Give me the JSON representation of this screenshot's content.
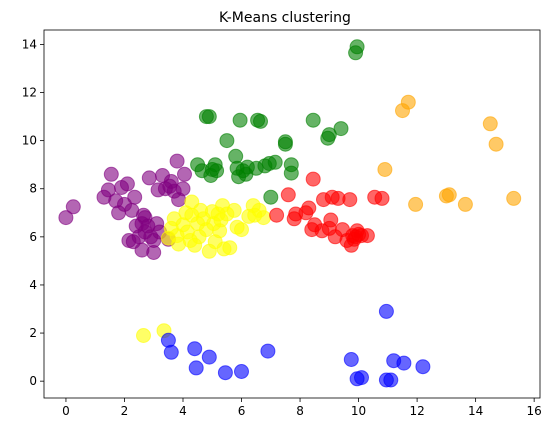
{
  "chart_data": {
    "type": "scatter",
    "title": "K-Means clustering",
    "xlabel": "",
    "ylabel": "",
    "xlim": [
      -0.75,
      16.2
    ],
    "ylim": [
      -0.7,
      14.6
    ],
    "xticks": [
      0,
      2,
      4,
      6,
      8,
      10,
      12,
      14,
      16
    ],
    "yticks": [
      0,
      2,
      4,
      6,
      8,
      10,
      12,
      14
    ],
    "grid": false,
    "marker_alpha": 0.6,
    "series": [
      {
        "color": "#800080",
        "points": [
          [
            0,
            6.8
          ],
          [
            0.25,
            7.25
          ],
          [
            1.3,
            7.65
          ],
          [
            1.45,
            7.95
          ],
          [
            1.55,
            8.6
          ],
          [
            1.7,
            7.5
          ],
          [
            1.8,
            7.0
          ],
          [
            1.9,
            8.05
          ],
          [
            2.0,
            7.35
          ],
          [
            2.1,
            8.2
          ],
          [
            2.15,
            5.85
          ],
          [
            2.25,
            7.1
          ],
          [
            2.3,
            5.8
          ],
          [
            2.35,
            7.65
          ],
          [
            2.4,
            6.45
          ],
          [
            2.5,
            6.0
          ],
          [
            2.6,
            6.55
          ],
          [
            2.6,
            5.45
          ],
          [
            2.65,
            6.9
          ],
          [
            2.7,
            6.2
          ],
          [
            2.8,
            6.45
          ],
          [
            2.85,
            8.45
          ],
          [
            2.9,
            6.0
          ],
          [
            3.0,
            5.85
          ],
          [
            3.0,
            5.35
          ],
          [
            3.1,
            6.55
          ],
          [
            3.15,
            7.95
          ],
          [
            3.2,
            6.2
          ],
          [
            3.3,
            8.55
          ],
          [
            3.5,
            5.9
          ],
          [
            3.55,
            8.1
          ],
          [
            3.6,
            8.3
          ],
          [
            3.7,
            7.9
          ],
          [
            3.8,
            9.15
          ],
          [
            3.85,
            7.55
          ],
          [
            4.0,
            8.0
          ],
          [
            4.05,
            8.6
          ],
          [
            2.7,
            6.8
          ],
          [
            3.4,
            8.0
          ]
        ]
      },
      {
        "color": "#ffff00",
        "points": [
          [
            2.65,
            1.9
          ],
          [
            3.35,
            2.1
          ],
          [
            3.5,
            5.95
          ],
          [
            3.6,
            6.35
          ],
          [
            3.7,
            6.75
          ],
          [
            3.8,
            6.05
          ],
          [
            3.85,
            5.7
          ],
          [
            4.0,
            6.5
          ],
          [
            4.1,
            7.0
          ],
          [
            4.15,
            6.2
          ],
          [
            4.25,
            5.85
          ],
          [
            4.3,
            7.45
          ],
          [
            4.4,
            5.65
          ],
          [
            4.5,
            6.55
          ],
          [
            4.55,
            6.0
          ],
          [
            4.6,
            7.1
          ],
          [
            4.7,
            6.75
          ],
          [
            4.8,
            6.3
          ],
          [
            4.9,
            5.4
          ],
          [
            5.0,
            7.05
          ],
          [
            5.05,
            6.55
          ],
          [
            5.1,
            5.8
          ],
          [
            5.2,
            6.95
          ],
          [
            5.25,
            6.25
          ],
          [
            5.35,
            7.3
          ],
          [
            5.4,
            5.5
          ],
          [
            5.5,
            6.95
          ],
          [
            5.6,
            5.55
          ],
          [
            5.75,
            7.1
          ],
          [
            5.85,
            6.4
          ],
          [
            6.0,
            6.3
          ],
          [
            6.25,
            6.85
          ],
          [
            6.4,
            7.3
          ],
          [
            6.45,
            6.9
          ],
          [
            6.6,
            7.1
          ],
          [
            6.75,
            6.8
          ],
          [
            4.3,
            6.9
          ],
          [
            5.3,
            6.7
          ]
        ]
      },
      {
        "color": "#008000",
        "points": [
          [
            4.5,
            9.0
          ],
          [
            4.65,
            8.75
          ],
          [
            4.8,
            11.0
          ],
          [
            4.9,
            11.0
          ],
          [
            4.95,
            8.55
          ],
          [
            5.0,
            8.8
          ],
          [
            5.1,
            9.0
          ],
          [
            5.15,
            8.75
          ],
          [
            5.5,
            10.0
          ],
          [
            5.8,
            9.35
          ],
          [
            5.85,
            8.85
          ],
          [
            5.9,
            8.5
          ],
          [
            5.95,
            10.85
          ],
          [
            6.05,
            8.75
          ],
          [
            6.15,
            8.6
          ],
          [
            6.2,
            8.9
          ],
          [
            6.5,
            8.85
          ],
          [
            6.55,
            10.85
          ],
          [
            6.65,
            10.8
          ],
          [
            6.8,
            8.95
          ],
          [
            6.95,
            9.05
          ],
          [
            7.0,
            7.65
          ],
          [
            7.15,
            9.1
          ],
          [
            7.5,
            9.85
          ],
          [
            7.5,
            9.95
          ],
          [
            7.7,
            9.0
          ],
          [
            7.7,
            8.65
          ],
          [
            8.45,
            10.85
          ],
          [
            8.95,
            10.1
          ],
          [
            9.0,
            10.25
          ],
          [
            9.4,
            10.5
          ],
          [
            9.9,
            13.65
          ],
          [
            9.95,
            13.9
          ]
        ]
      },
      {
        "color": "#ff0000",
        "points": [
          [
            7.2,
            6.9
          ],
          [
            7.6,
            7.75
          ],
          [
            7.8,
            6.75
          ],
          [
            7.85,
            6.95
          ],
          [
            8.2,
            7.0
          ],
          [
            8.3,
            7.2
          ],
          [
            8.4,
            6.3
          ],
          [
            8.45,
            8.4
          ],
          [
            8.5,
            6.5
          ],
          [
            8.75,
            6.25
          ],
          [
            8.8,
            7.55
          ],
          [
            9.0,
            6.35
          ],
          [
            9.05,
            6.7
          ],
          [
            9.1,
            7.65
          ],
          [
            9.2,
            6.0
          ],
          [
            9.3,
            7.6
          ],
          [
            9.45,
            6.3
          ],
          [
            9.7,
            7.55
          ],
          [
            9.75,
            5.65
          ],
          [
            9.8,
            6.05
          ],
          [
            9.85,
            5.9
          ],
          [
            9.95,
            6.25
          ],
          [
            10.0,
            6.1
          ],
          [
            10.3,
            6.05
          ],
          [
            10.55,
            7.65
          ],
          [
            10.8,
            7.6
          ],
          [
            9.6,
            5.85
          ],
          [
            9.9,
            6.0
          ],
          [
            10.1,
            6.05
          ]
        ]
      },
      {
        "color": "#ffa500",
        "points": [
          [
            10.9,
            8.8
          ],
          [
            11.5,
            11.25
          ],
          [
            11.7,
            11.6
          ],
          [
            11.95,
            7.35
          ],
          [
            13.0,
            7.7
          ],
          [
            13.1,
            7.75
          ],
          [
            13.65,
            7.35
          ],
          [
            14.5,
            10.7
          ],
          [
            14.7,
            9.85
          ],
          [
            15.3,
            7.6
          ]
        ]
      },
      {
        "color": "#0000ff",
        "points": [
          [
            3.5,
            1.7
          ],
          [
            3.6,
            1.2
          ],
          [
            4.4,
            1.35
          ],
          [
            4.45,
            0.55
          ],
          [
            4.9,
            1.0
          ],
          [
            5.45,
            0.35
          ],
          [
            6.0,
            0.4
          ],
          [
            6.9,
            1.25
          ],
          [
            9.75,
            0.9
          ],
          [
            9.95,
            0.1
          ],
          [
            10.1,
            0.15
          ],
          [
            10.95,
            2.9
          ],
          [
            10.95,
            0.05
          ],
          [
            11.1,
            0.05
          ],
          [
            11.2,
            0.85
          ],
          [
            11.55,
            0.75
          ],
          [
            12.2,
            0.6
          ]
        ]
      }
    ]
  }
}
